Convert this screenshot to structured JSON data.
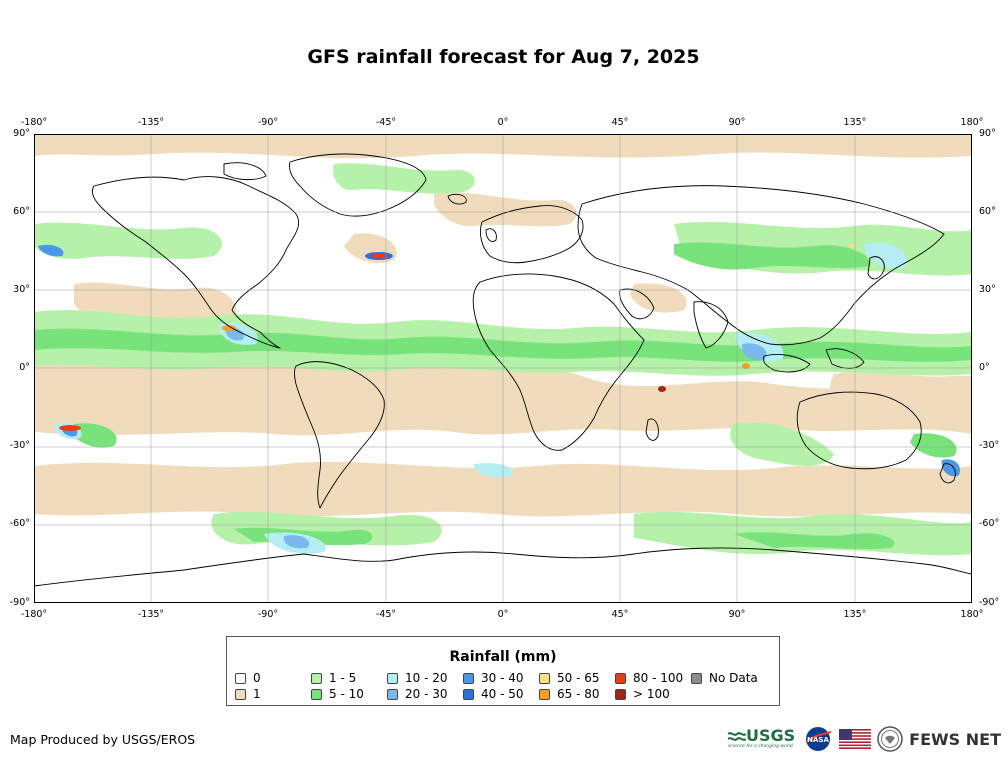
{
  "title": "GFS rainfall forecast for Aug 7, 2025",
  "map": {
    "longitude_ticks": [
      "-180°",
      "-135°",
      "-90°",
      "-45°",
      "0°",
      "45°",
      "90°",
      "135°",
      "180°"
    ],
    "latitude_ticks": [
      "90°",
      "60°",
      "30°",
      "0°",
      "-30°",
      "-60°",
      "-90°"
    ],
    "projection": "equirectangular",
    "extent": {
      "lon": [
        -180,
        180
      ],
      "lat": [
        -90,
        90
      ]
    },
    "gridlines": true
  },
  "legend": {
    "title": "Rainfall (mm)",
    "items": [
      {
        "label": "0",
        "color": "#ffffff"
      },
      {
        "label": "1",
        "color": "#f0dcbc"
      },
      {
        "label": "1 - 5",
        "color": "#b6f1a9"
      },
      {
        "label": "5 - 10",
        "color": "#78e37a"
      },
      {
        "label": "10 - 20",
        "color": "#b4eef2"
      },
      {
        "label": "20 - 30",
        "color": "#7ab8ee"
      },
      {
        "label": "30 - 40",
        "color": "#4b97e9"
      },
      {
        "label": "40 - 50",
        "color": "#2d6ee0"
      },
      {
        "label": "50 - 65",
        "color": "#fbe083"
      },
      {
        "label": "65 - 80",
        "color": "#f6a020"
      },
      {
        "label": "80 - 100",
        "color": "#f03812"
      },
      {
        "label": "> 100",
        "color": "#a02418"
      },
      {
        "label": "No Data",
        "color": "#8c8c8c"
      }
    ]
  },
  "footer": {
    "credit": "Map Produced by USGS/EROS",
    "logos": {
      "usgs": "USGS",
      "usgs_tagline": "science for a changing world",
      "nasa": "NASA",
      "fews": "FEWS NET"
    }
  },
  "colors": {
    "land_outline": "#000000",
    "grid": "#9a9a9a"
  }
}
